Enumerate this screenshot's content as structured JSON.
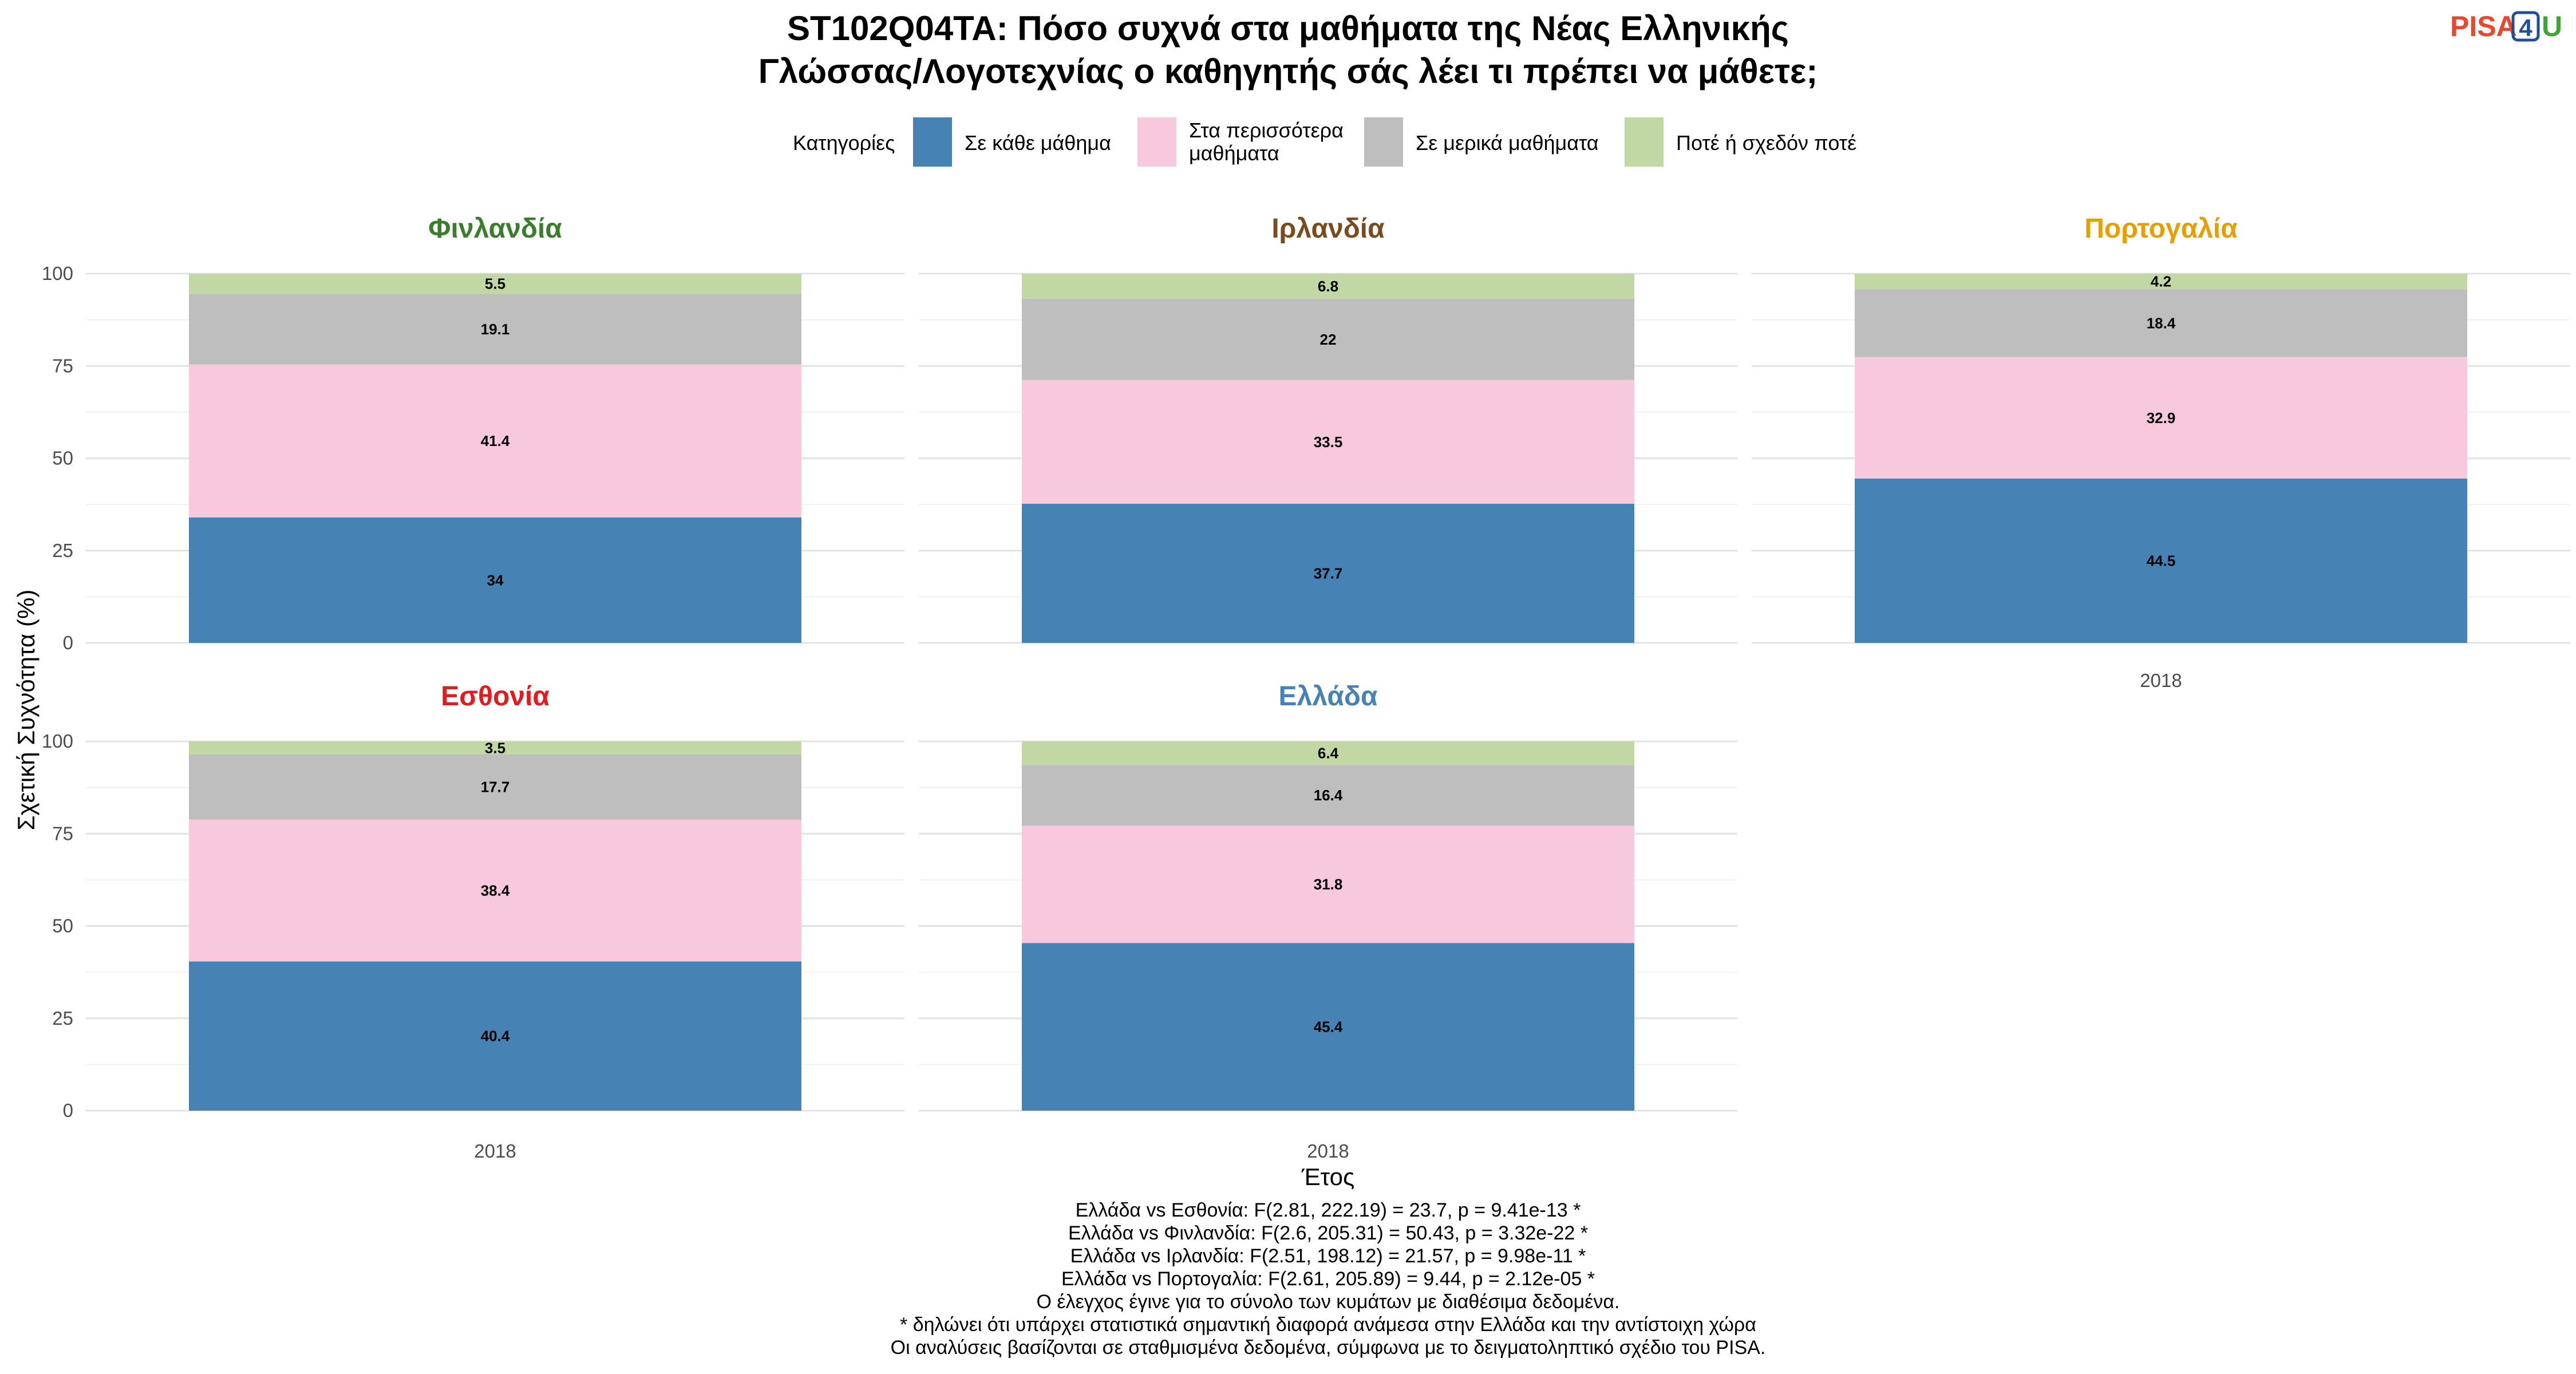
{
  "title_lines": [
    "ST102Q04TA: Πόσο συχνά στα μαθήματα της Νέας Ελληνικής",
    "Γλώσσας/Λογοτεχνίας ο καθηγητής σάς λέει τι πρέπει να μάθετε;"
  ],
  "logo": {
    "part1": "PISA",
    "part2": "4",
    "part3": "U",
    "colors": {
      "part1": "#e8482e",
      "part2": "#1f4e9c",
      "part3": "#3fa535"
    }
  },
  "legend": {
    "title": "Κατηγορίες",
    "items": [
      {
        "lines": [
          "Σε κάθε μάθημα"
        ],
        "color": "#4682b4"
      },
      {
        "lines": [
          "Στα περισσότερα",
          "μαθήματα"
        ],
        "color": "#f8c8dc"
      },
      {
        "lines": [
          "Σε μερικά μαθήματα"
        ],
        "color": "#bebebe"
      },
      {
        "lines": [
          "Ποτέ ή σχεδόν ποτέ"
        ],
        "color": "#c2d8a4"
      }
    ]
  },
  "chart_data": {
    "type": "bar",
    "stacked": true,
    "facet": true,
    "categories": [
      "2018"
    ],
    "series_names": [
      "Σε κάθε μάθημα",
      "Στα περισσότερα μαθήματα",
      "Σε μερικά μαθήματα",
      "Ποτέ ή σχεδόν ποτέ"
    ],
    "xlabel": "Έτος",
    "ylabel": "Σχετική Συχνότητα (%)",
    "ylim": [
      0,
      100
    ],
    "yticks": [
      0,
      25,
      50,
      75,
      100
    ],
    "panels": [
      {
        "name": "Φινλανδία",
        "color": "#3a7d2c",
        "year": "2018",
        "values": [
          34,
          41.4,
          19.1,
          5.5
        ],
        "labels": [
          "34",
          "41.4",
          "19.1",
          "5.5"
        ],
        "show_x": false
      },
      {
        "name": "Ιρλανδία",
        "color": "#7b4a1e",
        "year": "2018",
        "values": [
          37.7,
          33.5,
          22,
          6.8
        ],
        "labels": [
          "37.7",
          "33.5",
          "22",
          "6.8"
        ],
        "show_x": false
      },
      {
        "name": "Πορτογαλία",
        "color": "#e69f00",
        "year": "2018",
        "values": [
          44.5,
          32.9,
          18.4,
          4.2
        ],
        "labels": [
          "44.5",
          "32.9",
          "18.4",
          "4.2"
        ],
        "show_x": true
      },
      {
        "name": "Εσθονία",
        "color": "#e41a1c",
        "year": "2018",
        "values": [
          40.4,
          38.4,
          17.7,
          3.5
        ],
        "labels": [
          "40.4",
          "38.4",
          "17.7",
          "3.5"
        ],
        "show_x": true
      },
      {
        "name": "Ελλάδα",
        "color": "#4682b4",
        "year": "2018",
        "values": [
          45.4,
          31.8,
          16.4,
          6.4
        ],
        "labels": [
          "45.4",
          "31.8",
          "16.4",
          "6.4"
        ],
        "show_x": true
      }
    ]
  },
  "notes": [
    "Ελλάδα vs Εσθονία: F(2.81, 222.19) = 23.7, p = 9.41e-13 *",
    "Ελλάδα vs Φινλανδία: F(2.6, 205.31) = 50.43, p = 3.32e-22 *",
    "Ελλάδα vs Ιρλανδία: F(2.51, 198.12) = 21.57, p = 9.98e-11 *",
    "Ελλάδα vs Πορτογαλία: F(2.61, 205.89) = 9.44, p = 2.12e-05 *",
    "Ο έλεγχος έγινε για το σύνολο των κυμάτων με διαθέσιμα δεδομένα.",
    "* δηλώνει ότι υπάρχει στατιστικά σημαντική διαφορά ανάμεσα στην Ελλάδα και την αντίστοιχη χώρα",
    "Οι αναλύσεις βασίζονται σε σταθμισμένα δεδομένα, σύμφωνα με το δειγματοληπτικό σχέδιο του PISA."
  ]
}
